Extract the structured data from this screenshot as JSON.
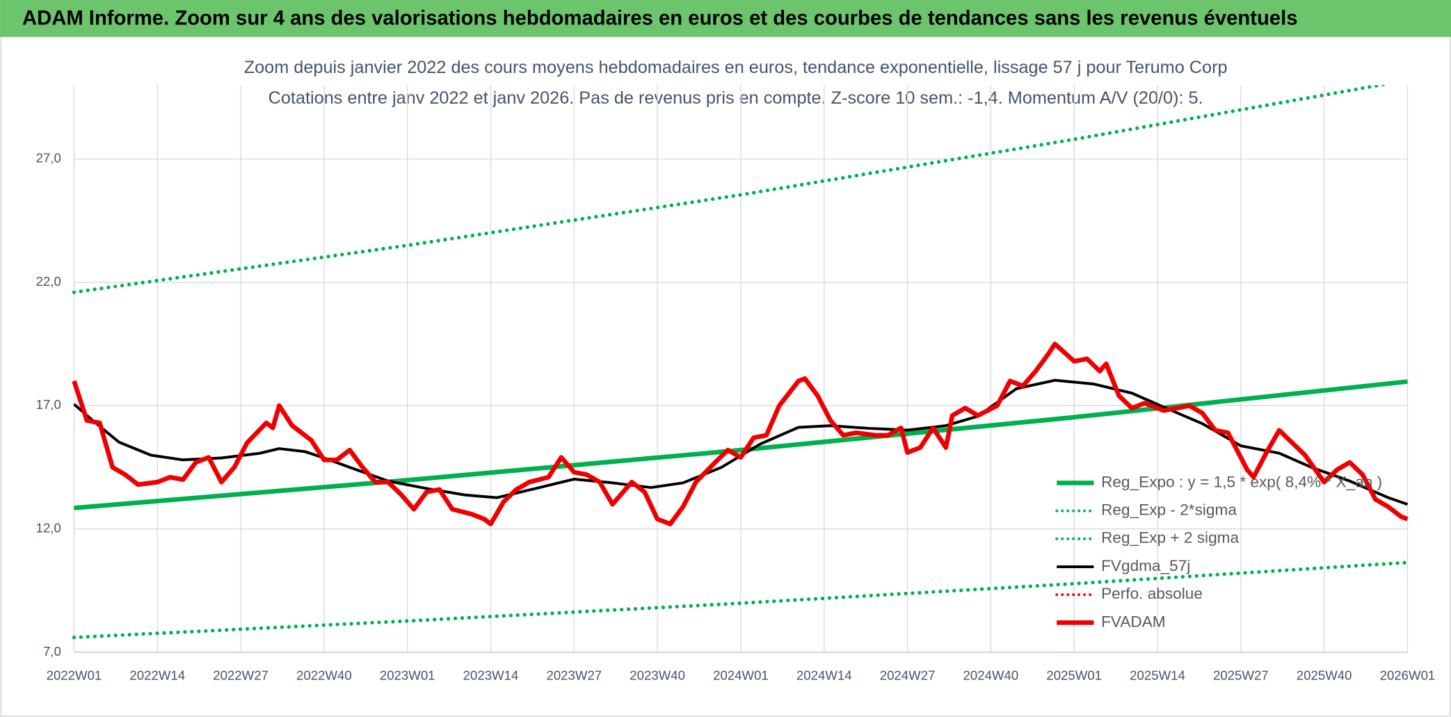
{
  "header": "ADAM Informe. Zoom sur 4 ans des valorisations hebdomadaires en euros et des courbes de tendances sans les revenus éventuels",
  "chart_data": {
    "type": "line",
    "title": "Zoom depuis janvier 2022 des cours moyens hebdomadaires en euros, tendance exponentielle, lissage 57 j pour Terumo Corp",
    "subtitle": "Cotations entre janv 2022 et janv 2026. Pas de revenus pris en compte. Z-score 10 sem.: -1,4. Momentum A/V (20/0): 5.",
    "xlim": [
      0,
      208
    ],
    "xticks": [
      {
        "value": 0,
        "label": "2022W01"
      },
      {
        "value": 13,
        "label": "2022W14"
      },
      {
        "value": 26,
        "label": "2022W27"
      },
      {
        "value": 39,
        "label": "2022W40"
      },
      {
        "value": 52,
        "label": "2023W01"
      },
      {
        "value": 65,
        "label": "2023W14"
      },
      {
        "value": 78,
        "label": "2023W27"
      },
      {
        "value": 91,
        "label": "2023W40"
      },
      {
        "value": 104,
        "label": "2024W01"
      },
      {
        "value": 117,
        "label": "2024W14"
      },
      {
        "value": 130,
        "label": "2024W27"
      },
      {
        "value": 143,
        "label": "2024W40"
      },
      {
        "value": 156,
        "label": "2025W01"
      },
      {
        "value": 169,
        "label": "2025W14"
      },
      {
        "value": 182,
        "label": "2025W27"
      },
      {
        "value": 195,
        "label": "2025W40"
      },
      {
        "value": 208,
        "label": "2026W01"
      }
    ],
    "ylim": [
      7,
      30
    ],
    "yticks": [
      {
        "value": 7,
        "label": "7,0"
      },
      {
        "value": 12,
        "label": "12,0"
      },
      {
        "value": 17,
        "label": "17,0"
      },
      {
        "value": 22,
        "label": "22,0"
      },
      {
        "value": 27,
        "label": "27,0"
      }
    ],
    "grid": true,
    "legend": "right",
    "series": [
      {
        "name": "Reg_Expo : y = 1,5 * exp( 8,4% * X_an )",
        "color": "#00b050",
        "style": "solid",
        "x": [
          0,
          52,
          104,
          156,
          208
        ],
        "values": [
          12.85,
          13.98,
          15.2,
          16.53,
          17.98
        ]
      },
      {
        "name": "Reg_Exp - 2*sigma",
        "color": "#00b050",
        "style": "dotted",
        "x": [
          0,
          52,
          104,
          156,
          208
        ],
        "values": [
          7.6,
          8.27,
          8.99,
          9.78,
          10.64
        ]
      },
      {
        "name": "Reg_Exp + 2 sigma",
        "color": "#00b050",
        "style": "dotted",
        "x": [
          0,
          52,
          104,
          156,
          208
        ],
        "values": [
          21.6,
          23.5,
          25.55,
          27.8,
          30.2
        ]
      },
      {
        "name": "FVgdma_57j",
        "color": "#000000",
        "style": "thin",
        "x": [
          0,
          3,
          7,
          12,
          17,
          23,
          29,
          32,
          36,
          39,
          43,
          49,
          55,
          61,
          66,
          72,
          78,
          84,
          90,
          95,
          101,
          107,
          113,
          118,
          124,
          130,
          136,
          141,
          147,
          153,
          159,
          165,
          170,
          176,
          182,
          188,
          193,
          199,
          205,
          208
        ],
        "values": [
          17.06,
          16.38,
          15.52,
          14.99,
          14.8,
          14.88,
          15.07,
          15.26,
          15.14,
          14.88,
          14.5,
          13.94,
          13.64,
          13.38,
          13.27,
          13.64,
          14.02,
          13.87,
          13.68,
          13.87,
          14.5,
          15.44,
          16.12,
          16.19,
          16.08,
          16.01,
          16.19,
          16.57,
          17.69,
          18.03,
          17.88,
          17.51,
          16.94,
          16.27,
          15.37,
          15.07,
          14.5,
          13.94,
          13.27,
          13.0
        ]
      },
      {
        "name": "Perfo. absolue",
        "color": "#ff0000",
        "style": "dotted",
        "x": [],
        "values": []
      },
      {
        "name": "FVADAM",
        "color": "#ee0000",
        "style": "solid",
        "x": [
          0,
          2,
          4,
          6,
          8,
          10,
          13,
          15,
          17,
          19,
          21,
          23,
          25,
          27,
          30,
          31,
          32,
          34,
          37,
          39,
          41,
          43,
          45,
          47,
          49,
          51,
          53,
          55,
          57,
          59,
          62,
          64,
          65,
          67,
          69,
          71,
          74,
          76,
          78,
          80,
          82,
          84,
          87,
          89,
          91,
          93,
          95,
          97,
          100,
          102,
          104,
          106,
          108,
          110,
          113,
          114,
          116,
          118,
          120,
          122,
          125,
          127,
          129,
          130,
          132,
          134,
          136,
          137,
          139,
          141,
          144,
          146,
          148,
          150,
          152,
          153,
          156,
          158,
          160,
          161,
          163,
          165,
          167,
          170,
          172,
          174,
          176,
          178,
          180,
          183,
          184,
          186,
          188,
          190,
          192,
          195,
          197,
          199,
          201,
          203,
          205,
          207,
          208
        ],
        "values": [
          18.0,
          16.4,
          16.3,
          14.5,
          14.2,
          13.8,
          13.9,
          14.1,
          14.0,
          14.7,
          14.9,
          13.9,
          14.5,
          15.5,
          16.3,
          16.1,
          17.0,
          16.2,
          15.6,
          14.8,
          14.8,
          15.2,
          14.5,
          13.9,
          13.9,
          13.4,
          12.8,
          13.5,
          13.6,
          12.8,
          12.6,
          12.4,
          12.2,
          13.1,
          13.6,
          13.9,
          14.1,
          14.9,
          14.3,
          14.2,
          13.9,
          13.0,
          13.9,
          13.5,
          12.4,
          12.2,
          12.9,
          13.9,
          14.7,
          15.2,
          14.9,
          15.7,
          15.8,
          17.0,
          18.0,
          18.1,
          17.4,
          16.4,
          15.8,
          15.9,
          15.8,
          15.8,
          16.1,
          15.1,
          15.3,
          16.1,
          15.3,
          16.6,
          16.9,
          16.6,
          17.0,
          18.0,
          17.8,
          18.4,
          19.1,
          19.5,
          18.8,
          18.9,
          18.4,
          18.7,
          17.4,
          16.9,
          17.1,
          16.8,
          16.9,
          17.0,
          16.7,
          16.0,
          15.9,
          14.4,
          14.1,
          15.1,
          16.0,
          15.5,
          15.0,
          13.9,
          14.4,
          14.7,
          14.2,
          13.2,
          12.9,
          12.5,
          12.4
        ]
      }
    ]
  }
}
